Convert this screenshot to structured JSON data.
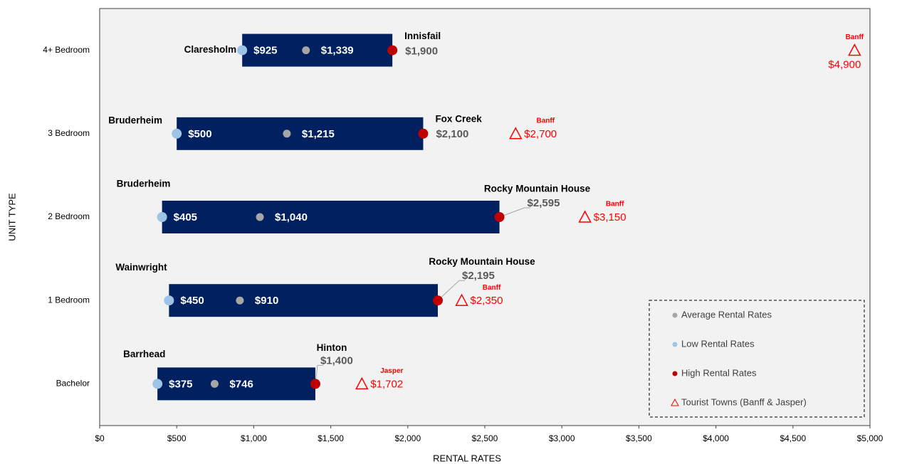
{
  "chart_data": {
    "type": "range_dot",
    "x_label": "RENTAL RATES",
    "y_label": "UNIT TYPE",
    "categories": [
      "Bachelor",
      "1 Bedroom",
      "2 Bedroom",
      "3 Bedroom",
      "4+ Bedroom"
    ],
    "xlim": [
      0,
      5000
    ],
    "xticks": [
      {
        "value": 0,
        "label": "$0"
      },
      {
        "value": 500,
        "label": "$500"
      },
      {
        "value": 1000,
        "label": "$1,000"
      },
      {
        "value": 1500,
        "label": "$1,500"
      },
      {
        "value": 2000,
        "label": "$2,000"
      },
      {
        "value": 2500,
        "label": "$2,500"
      },
      {
        "value": 3000,
        "label": "$3,000"
      },
      {
        "value": 3500,
        "label": "$3,500"
      },
      {
        "value": 4000,
        "label": "$4,000"
      },
      {
        "value": 4500,
        "label": "$4,500"
      },
      {
        "value": 5000,
        "label": "$5,000"
      }
    ],
    "bar_color": "#002060",
    "series": [
      {
        "name": "Average Rental Rates",
        "color": "#a6a6a6",
        "values": [
          746,
          910,
          1040,
          1215,
          1339
        ],
        "value_labels": [
          "$746",
          "$910",
          "$1,040",
          "$1,215",
          "$1,339"
        ]
      },
      {
        "name": "Low Rental Rates",
        "color": "#9dc3e6",
        "values": [
          375,
          450,
          405,
          500,
          925
        ],
        "value_labels": [
          "$375",
          "$450",
          "$405",
          "$500",
          "$925"
        ],
        "towns": [
          "Barrhead",
          "Wainwright",
          "Bruderheim",
          "Bruderheim",
          "Claresholm"
        ]
      },
      {
        "name": "High Rental Rates",
        "color": "#c00000",
        "values": [
          1400,
          2195,
          2595,
          2100,
          1900
        ],
        "value_labels": [
          "$1,400",
          "$2,195",
          "$2,595",
          "$2,100",
          "$1,900"
        ],
        "towns": [
          "Hinton",
          "Rocky Mountain House",
          "Rocky Mountain House",
          "Fox Creek",
          "Innisfail"
        ]
      },
      {
        "name": "Tourist Towns (Banff & Jasper)",
        "color": "#ff0000",
        "values": [
          1702,
          2350,
          3150,
          2700,
          4900
        ],
        "value_labels": [
          "$1,702",
          "$2,350",
          "$3,150",
          "$2,700",
          "$4,900"
        ],
        "towns": [
          "Jasper",
          "Banff",
          "Banff",
          "Banff",
          "Banff"
        ]
      }
    ]
  }
}
